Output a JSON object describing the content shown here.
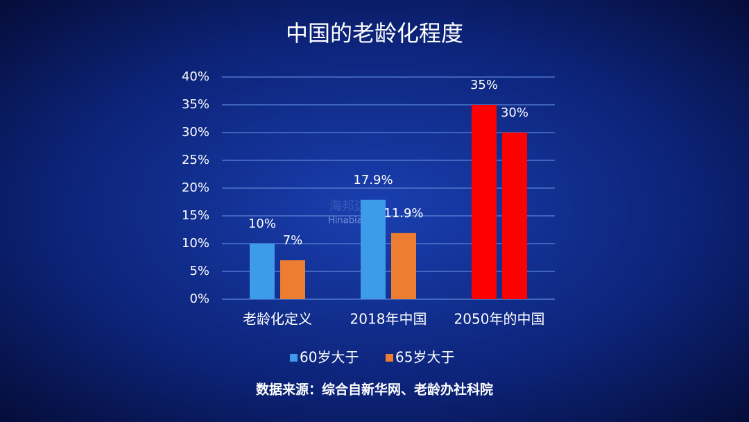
{
  "chart_data": {
    "type": "bar",
    "title": "中国的老龄化程度",
    "categories": [
      "老龄化定义",
      "2018年中国",
      "2050年的中国"
    ],
    "series": [
      {
        "name": "60岁大于",
        "color": "#3d9be9",
        "colors": [
          "#3d9be9",
          "#3d9be9",
          "#ff0000"
        ],
        "values": [
          10,
          17.9,
          35
        ],
        "value_labels": [
          "10%",
          "17.9%",
          "35%"
        ]
      },
      {
        "name": "65岁大于",
        "color": "#ed7d31",
        "colors": [
          "#ed7d31",
          "#ed7d31",
          "#ff0000"
        ],
        "values": [
          7,
          11.9,
          30
        ],
        "value_labels": [
          "7%",
          "11.9%",
          "30%"
        ]
      }
    ],
    "ylim": [
      0,
      40
    ],
    "yticks": [
      {
        "value": 0,
        "label": "0%"
      },
      {
        "value": 5,
        "label": "5%"
      },
      {
        "value": 10,
        "label": "10%"
      },
      {
        "value": 15,
        "label": "15%"
      },
      {
        "value": 20,
        "label": "20%"
      },
      {
        "value": 25,
        "label": "25%"
      },
      {
        "value": 30,
        "label": "30%"
      },
      {
        "value": 35,
        "label": "35%"
      },
      {
        "value": 40,
        "label": "40%"
      }
    ],
    "grid": true,
    "legend": "bottom",
    "source": "数据来源：综合自新华网、老龄办社科院",
    "watermark": [
      "海邦边",
      "Hinabian"
    ]
  }
}
